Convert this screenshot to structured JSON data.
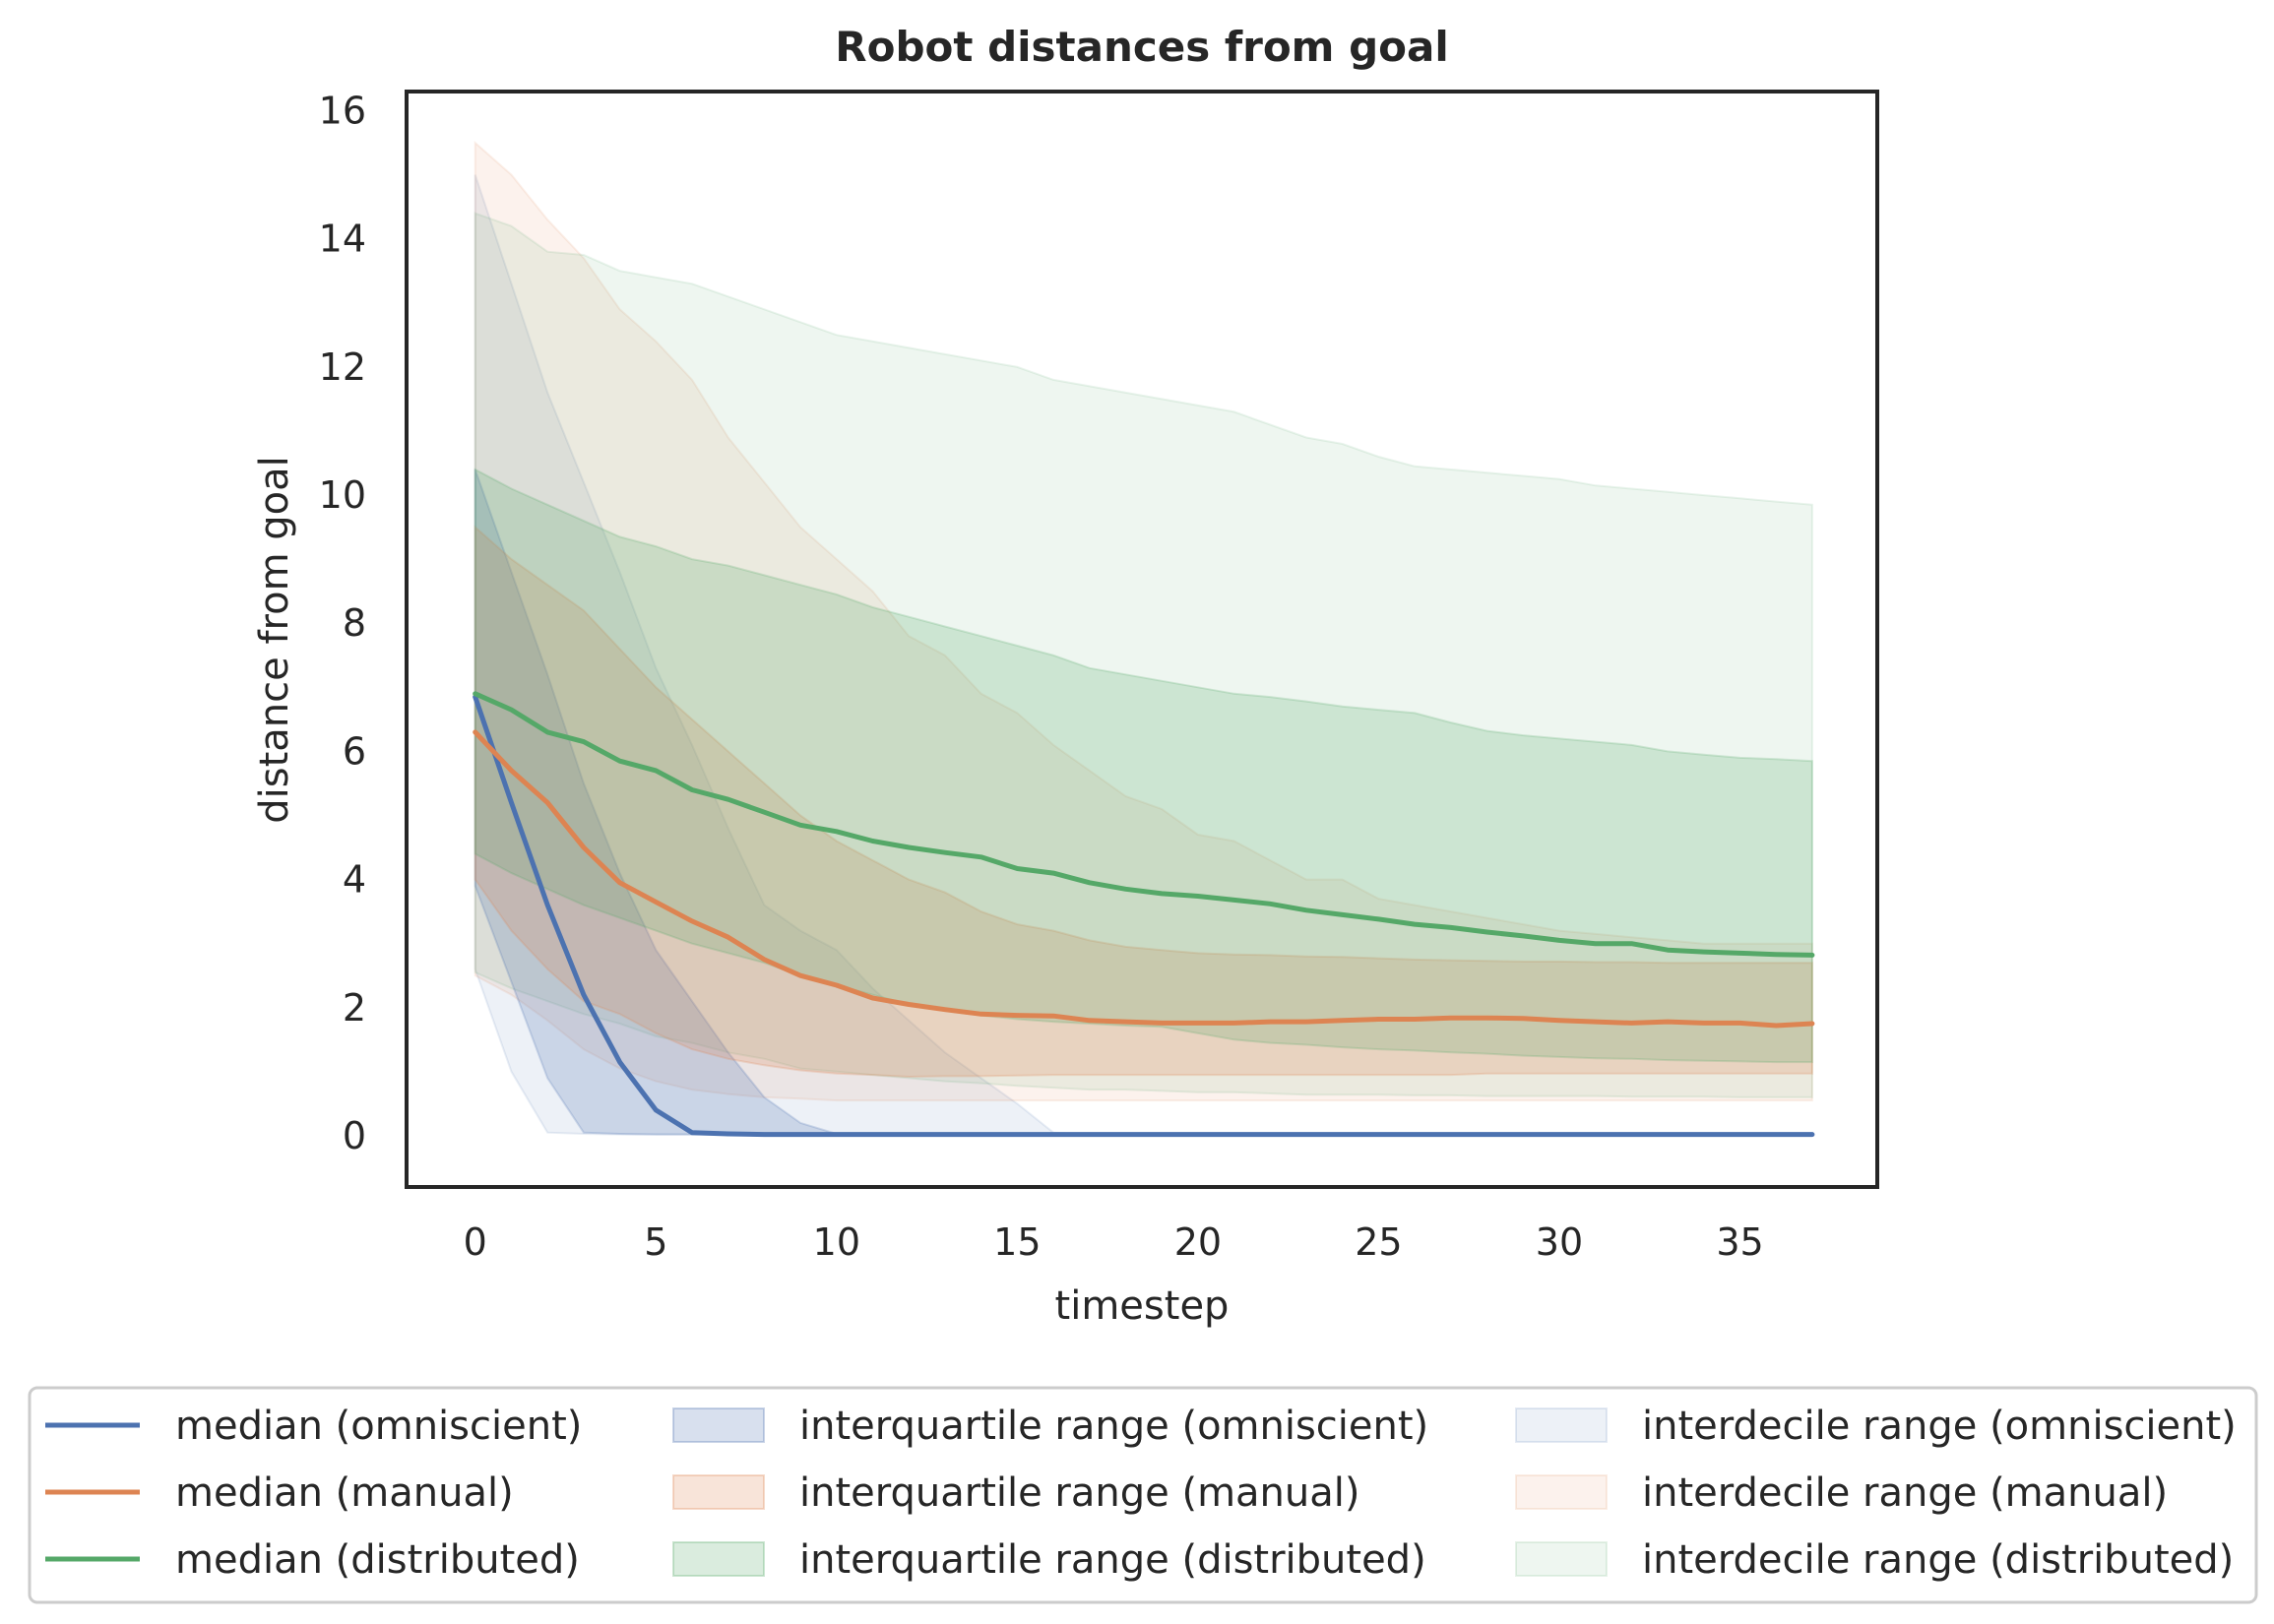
{
  "chart_data": {
    "type": "line",
    "title": "Robot distances from goal",
    "xlabel": "timestep",
    "ylabel": "distance from goal",
    "xlim": [
      -1.9,
      38.8
    ],
    "ylim": [
      -0.8,
      16.3
    ],
    "xticks": [
      0,
      5,
      10,
      15,
      20,
      25,
      30,
      35
    ],
    "yticks": [
      0,
      2,
      4,
      6,
      8,
      10,
      12,
      14,
      16
    ],
    "grid": false,
    "legend_position": "bottom",
    "x": [
      0,
      1,
      2,
      3,
      4,
      5,
      6,
      7,
      8,
      9,
      10,
      11,
      12,
      13,
      14,
      15,
      16,
      17,
      18,
      19,
      20,
      21,
      22,
      23,
      24,
      25,
      26,
      27,
      28,
      29,
      30,
      31,
      32,
      33,
      34,
      35,
      36,
      37
    ],
    "series": [
      {
        "key": "omniscient",
        "color": "#4c72b0",
        "median_label": "median (omniscient)",
        "iqr_label": "interquartile range (omniscient)",
        "idr_label": "interdecile range (omniscient)",
        "median": [
          6.85,
          5.2,
          3.6,
          2.2,
          1.15,
          0.4,
          0.05,
          0.03,
          0.02,
          0.02,
          0.02,
          0.02,
          0.02,
          0.02,
          0.02,
          0.02,
          0.02,
          0.02,
          0.02,
          0.02,
          0.02,
          0.02,
          0.02,
          0.02,
          0.02,
          0.02,
          0.02,
          0.02,
          0.02,
          0.02,
          0.02,
          0.02,
          0.02,
          0.02,
          0.02,
          0.02,
          0.02,
          0.02
        ],
        "iqr_low": [
          3.9,
          2.4,
          0.9,
          0.05,
          0.03,
          0.02,
          0.02,
          0.02,
          0.02,
          0.02,
          0.02,
          0.02,
          0.02,
          0.02,
          0.02,
          0.02,
          0.02,
          0.02,
          0.02,
          0.02,
          0.02,
          0.02,
          0.02,
          0.02,
          0.02,
          0.02,
          0.02,
          0.02,
          0.02,
          0.02,
          0.02,
          0.02,
          0.02,
          0.02,
          0.02,
          0.02,
          0.02,
          0.02
        ],
        "iqr_high": [
          10.4,
          8.8,
          7.2,
          5.5,
          4.1,
          2.9,
          2.1,
          1.3,
          0.6,
          0.2,
          0.03,
          0.02,
          0.02,
          0.02,
          0.02,
          0.02,
          0.02,
          0.02,
          0.02,
          0.02,
          0.02,
          0.02,
          0.02,
          0.02,
          0.02,
          0.02,
          0.02,
          0.02,
          0.02,
          0.02,
          0.02,
          0.02,
          0.02,
          0.02,
          0.02,
          0.02,
          0.02,
          0.02
        ],
        "idr_low": [
          2.6,
          1.0,
          0.05,
          0.03,
          0.02,
          0.02,
          0.02,
          0.02,
          0.02,
          0.02,
          0.02,
          0.02,
          0.02,
          0.02,
          0.02,
          0.02,
          0.02,
          0.02,
          0.02,
          0.02,
          0.02,
          0.02,
          0.02,
          0.02,
          0.02,
          0.02,
          0.02,
          0.02,
          0.02,
          0.02,
          0.02,
          0.02,
          0.02,
          0.02,
          0.02,
          0.02,
          0.02,
          0.02
        ],
        "idr_high": [
          15.0,
          13.3,
          11.6,
          10.2,
          8.8,
          7.3,
          6.1,
          4.8,
          3.6,
          3.2,
          2.9,
          2.3,
          1.8,
          1.3,
          0.9,
          0.5,
          0.05,
          0.02,
          0.02,
          0.02,
          0.02,
          0.02,
          0.02,
          0.02,
          0.02,
          0.02,
          0.02,
          0.02,
          0.02,
          0.02,
          0.02,
          0.02,
          0.02,
          0.02,
          0.02,
          0.02,
          0.02,
          0.02
        ]
      },
      {
        "key": "manual",
        "color": "#dd8452",
        "median_label": "median (manual)",
        "iqr_label": "interquartile range (manual)",
        "idr_label": "interdecile range (manual)",
        "median": [
          6.3,
          5.7,
          5.2,
          4.5,
          3.95,
          3.65,
          3.35,
          3.1,
          2.75,
          2.5,
          2.35,
          2.15,
          2.05,
          1.97,
          1.9,
          1.88,
          1.87,
          1.8,
          1.78,
          1.76,
          1.76,
          1.76,
          1.78,
          1.78,
          1.8,
          1.82,
          1.82,
          1.84,
          1.84,
          1.83,
          1.8,
          1.78,
          1.76,
          1.78,
          1.76,
          1.76,
          1.72,
          1.75
        ],
        "iqr_low": [
          4.0,
          3.2,
          2.6,
          2.1,
          1.9,
          1.6,
          1.35,
          1.2,
          1.1,
          1.02,
          0.97,
          0.95,
          0.92,
          0.93,
          0.93,
          0.94,
          0.95,
          0.95,
          0.95,
          0.95,
          0.95,
          0.95,
          0.95,
          0.95,
          0.95,
          0.95,
          0.95,
          0.95,
          0.97,
          0.97,
          0.97,
          0.97,
          0.97,
          0.97,
          0.97,
          0.97,
          0.97,
          0.97
        ],
        "iqr_high": [
          9.5,
          9.0,
          8.6,
          8.2,
          7.6,
          7.0,
          6.5,
          6.0,
          5.5,
          5.0,
          4.6,
          4.3,
          4.0,
          3.8,
          3.5,
          3.3,
          3.2,
          3.05,
          2.95,
          2.9,
          2.85,
          2.83,
          2.82,
          2.8,
          2.79,
          2.77,
          2.75,
          2.74,
          2.73,
          2.72,
          2.72,
          2.71,
          2.71,
          2.7,
          2.7,
          2.7,
          2.7,
          2.7
        ],
        "idr_low": [
          2.5,
          2.2,
          1.8,
          1.35,
          1.05,
          0.85,
          0.72,
          0.65,
          0.6,
          0.58,
          0.55,
          0.55,
          0.55,
          0.55,
          0.55,
          0.55,
          0.55,
          0.55,
          0.55,
          0.55,
          0.55,
          0.55,
          0.55,
          0.55,
          0.55,
          0.55,
          0.55,
          0.55,
          0.55,
          0.55,
          0.55,
          0.55,
          0.55,
          0.55,
          0.55,
          0.55,
          0.55,
          0.55
        ],
        "idr_high": [
          15.5,
          15.0,
          14.3,
          13.7,
          12.9,
          12.4,
          11.8,
          10.9,
          10.2,
          9.5,
          9.0,
          8.5,
          7.8,
          7.5,
          6.9,
          6.6,
          6.1,
          5.7,
          5.3,
          5.1,
          4.7,
          4.6,
          4.3,
          4.0,
          4.0,
          3.7,
          3.6,
          3.5,
          3.4,
          3.3,
          3.2,
          3.15,
          3.1,
          3.05,
          3.0,
          3.0,
          3.0,
          3.0
        ]
      },
      {
        "key": "distributed",
        "color": "#55a868",
        "median_label": "median (distributed)",
        "iqr_label": "interquartile range (distributed)",
        "idr_label": "interdecile range (distributed)",
        "median": [
          6.9,
          6.65,
          6.3,
          6.15,
          5.85,
          5.7,
          5.4,
          5.25,
          5.05,
          4.85,
          4.75,
          4.6,
          4.5,
          4.42,
          4.35,
          4.17,
          4.1,
          3.95,
          3.85,
          3.78,
          3.74,
          3.68,
          3.62,
          3.52,
          3.45,
          3.38,
          3.3,
          3.25,
          3.18,
          3.12,
          3.05,
          3.0,
          3.0,
          2.9,
          2.87,
          2.85,
          2.83,
          2.82
        ],
        "iqr_low": [
          4.4,
          4.1,
          3.85,
          3.6,
          3.4,
          3.2,
          3.0,
          2.85,
          2.7,
          2.5,
          2.35,
          2.2,
          2.05,
          1.95,
          1.88,
          1.82,
          1.78,
          1.75,
          1.72,
          1.7,
          1.6,
          1.5,
          1.45,
          1.42,
          1.38,
          1.35,
          1.33,
          1.3,
          1.28,
          1.25,
          1.23,
          1.21,
          1.2,
          1.18,
          1.17,
          1.16,
          1.15,
          1.15
        ],
        "iqr_high": [
          10.4,
          10.1,
          9.85,
          9.6,
          9.35,
          9.2,
          9.0,
          8.9,
          8.75,
          8.6,
          8.45,
          8.25,
          8.1,
          7.95,
          7.8,
          7.65,
          7.5,
          7.3,
          7.2,
          7.1,
          7.0,
          6.9,
          6.85,
          6.78,
          6.7,
          6.65,
          6.6,
          6.45,
          6.32,
          6.25,
          6.2,
          6.15,
          6.1,
          6.0,
          5.95,
          5.9,
          5.88,
          5.85
        ],
        "idr_low": [
          2.55,
          2.3,
          2.1,
          1.9,
          1.75,
          1.55,
          1.45,
          1.3,
          1.2,
          1.05,
          1.0,
          0.95,
          0.9,
          0.85,
          0.82,
          0.78,
          0.75,
          0.72,
          0.72,
          0.7,
          0.68,
          0.68,
          0.66,
          0.64,
          0.64,
          0.64,
          0.63,
          0.63,
          0.62,
          0.62,
          0.62,
          0.62,
          0.61,
          0.61,
          0.61,
          0.6,
          0.6,
          0.6
        ],
        "idr_high": [
          14.4,
          14.2,
          13.8,
          13.75,
          13.5,
          13.4,
          13.3,
          13.1,
          12.9,
          12.7,
          12.5,
          12.4,
          12.3,
          12.2,
          12.1,
          12.0,
          11.8,
          11.7,
          11.6,
          11.5,
          11.4,
          11.3,
          11.1,
          10.9,
          10.8,
          10.6,
          10.45,
          10.4,
          10.35,
          10.3,
          10.25,
          10.15,
          10.1,
          10.05,
          10.0,
          9.95,
          9.9,
          9.85
        ]
      }
    ]
  }
}
